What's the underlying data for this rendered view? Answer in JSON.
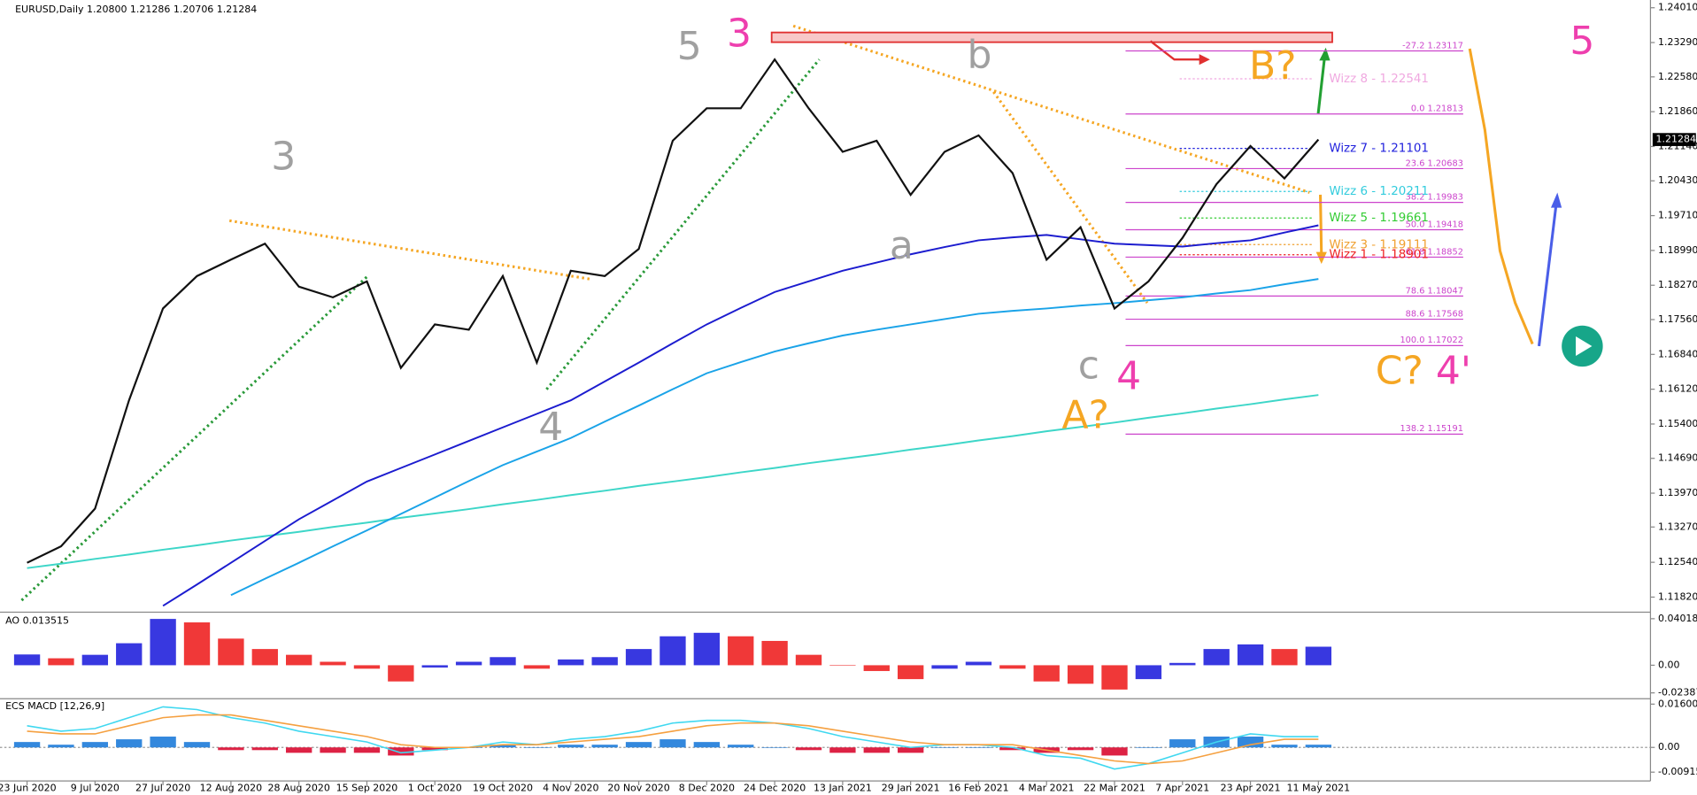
{
  "header": "EURUSD,Daily  1.20800 1.21286 1.20706 1.21284",
  "chart_data": [
    {
      "type": "line",
      "categories": [
        "23 Jun 2020",
        null,
        "9 Jul 2020",
        null,
        "27 Jul 2020",
        null,
        "12 Aug 2020",
        null,
        "28 Aug 2020",
        null,
        "15 Sep 2020",
        null,
        "1 Oct 2020",
        null,
        "19 Oct 2020",
        null,
        "4 Nov 2020",
        null,
        "20 Nov 2020",
        null,
        "8 Dec 2020",
        null,
        "24 Dec 2020",
        null,
        "13 Jan 2021",
        null,
        "29 Jan 2021",
        null,
        "16 Feb 2021",
        null,
        "4 Mar 2021",
        null,
        "22 Mar 2021",
        null,
        "7 Apr 2021",
        null,
        "23 Apr 2021",
        null,
        "11 May 2021"
      ],
      "series": [
        {
          "color": "#111111",
          "values": [
            1.1253,
            1.1287,
            1.1365,
            1.1589,
            1.1779,
            1.1846,
            1.188,
            1.1913,
            1.1824,
            1.1802,
            1.1835,
            1.1656,
            1.1746,
            1.1735,
            1.1846,
            1.1667,
            1.1857,
            1.1846,
            1.1902,
            1.2126,
            1.2193,
            1.2193,
            1.2294,
            1.2193,
            1.2103,
            1.2126,
            1.2014,
            1.2103,
            1.2137,
            1.2059,
            1.188,
            1.1947,
            1.1779,
            1.1835,
            1.1925,
            1.2036,
            1.2115,
            1.2048,
            1.21284
          ]
        },
        {
          "color": "#1c1ccf",
          "values": [
            null,
            null,
            null,
            null,
            1.1164,
            1.1208,
            1.1253,
            1.1298,
            1.1343,
            1.1382,
            1.1421,
            1.1449,
            1.1477,
            1.1505,
            1.1533,
            1.1561,
            1.1589,
            1.1628,
            1.1667,
            1.1707,
            1.1746,
            1.178,
            1.1813,
            1.1835,
            1.1857,
            1.1874,
            1.1891,
            1.1906,
            1.192,
            1.1926,
            1.1931,
            1.1922,
            1.1913,
            1.191,
            1.1907,
            1.1914,
            1.192,
            1.1936,
            1.1951
          ]
        },
        {
          "color": "#1aa3e8",
          "values": [
            null,
            null,
            null,
            null,
            null,
            null,
            1.1186,
            1.122,
            1.1253,
            1.1287,
            1.132,
            1.1354,
            1.1388,
            1.1422,
            1.1455,
            1.1483,
            1.1511,
            1.1545,
            1.1578,
            1.1612,
            1.1645,
            1.1668,
            1.169,
            1.1707,
            1.1723,
            1.1735,
            1.1746,
            1.1757,
            1.1768,
            1.1774,
            1.1779,
            1.1785,
            1.179,
            1.1796,
            1.1802,
            1.181,
            1.1817,
            1.1829,
            1.184
          ]
        },
        {
          "color": "#3dd6c8",
          "values": [
            1.1242,
            1.1251,
            1.1261,
            1.127,
            1.128,
            1.1289,
            1.1299,
            1.1308,
            1.1317,
            1.1327,
            1.1336,
            1.1346,
            1.1355,
            1.1364,
            1.1374,
            1.1383,
            1.1393,
            1.1402,
            1.1412,
            1.1421,
            1.143,
            1.144,
            1.1449,
            1.1459,
            1.1468,
            1.1477,
            1.1487,
            1.1496,
            1.1506,
            1.1515,
            1.1525,
            1.1534,
            1.1543,
            1.1553,
            1.1562,
            1.1572,
            1.1581,
            1.1591,
            1.16
          ]
        }
      ],
      "ylim": [
        1.1153,
        1.2417
      ],
      "yticks": [
        {
          "value": 1.1182,
          "label": "1.11820"
        },
        {
          "value": 1.1254,
          "label": "1.12540"
        },
        {
          "value": 1.1327,
          "label": "1.13270"
        },
        {
          "value": 1.1397,
          "label": "1.13970"
        },
        {
          "value": 1.1469,
          "label": "1.14690"
        },
        {
          "value": 1.154,
          "label": "1.15400"
        },
        {
          "value": 1.1612,
          "label": "1.16120"
        },
        {
          "value": 1.1684,
          "label": "1.16840"
        },
        {
          "value": 1.1756,
          "label": "1.17560"
        },
        {
          "value": 1.1827,
          "label": "1.18270"
        },
        {
          "value": 1.1899,
          "label": "1.18990"
        },
        {
          "value": 1.1971,
          "label": "1.19710"
        },
        {
          "value": 1.2043,
          "label": "1.20430"
        },
        {
          "value": 1.2114,
          "label": "1.21140"
        },
        {
          "value": 1.2186,
          "label": "1.21860"
        },
        {
          "value": 1.2258,
          "label": "1.22580"
        },
        {
          "value": 1.2329,
          "label": "1.23290"
        },
        {
          "value": 1.2401,
          "label": "1.24010"
        }
      ],
      "last_price": 1.21284,
      "fib_color": "#cc44cc",
      "fib_levels": [
        {
          "value": 1.23117,
          "label": "-27.2 1.23117"
        },
        {
          "value": 1.21813,
          "label": "0.0 1.21813"
        },
        {
          "value": 1.20683,
          "label": "23.6 1.20683"
        },
        {
          "value": 1.19983,
          "label": "38.2 1.19983"
        },
        {
          "value": 1.19418,
          "label": "50.0 1.19418"
        },
        {
          "value": 1.18852,
          "label": "61.8 1.18852"
        },
        {
          "value": 1.18047,
          "label": "78.6 1.18047"
        },
        {
          "value": 1.17568,
          "label": "88.6 1.17568"
        },
        {
          "value": 1.17022,
          "label": "100.0 1.17022"
        },
        {
          "value": 1.15191,
          "label": "138.2 1.15191"
        }
      ],
      "wizz_levels": [
        {
          "value": 1.22541,
          "label": "Wizz 8 - 1.22541",
          "color": "#f0a8e0"
        },
        {
          "value": 1.21101,
          "label": "Wizz 7 - 1.21101",
          "color": "#2222dd"
        },
        {
          "value": 1.20211,
          "label": "Wizz 6 - 1.20211",
          "color": "#33ccdd"
        },
        {
          "value": 1.19661,
          "label": "Wizz 5 - 1.19661",
          "color": "#33cc33"
        },
        {
          "value": 1.19111,
          "label": "Wizz 3 - 1.19111",
          "color": "#f0a030"
        },
        {
          "value": 1.18901,
          "label": "Wizz 1 - 1.18901",
          "color": "#ee2222"
        }
      ],
      "annotations": [
        {
          "text": "3",
          "color": "#a0a0a0"
        },
        {
          "text": "5",
          "color": "#a0a0a0"
        },
        {
          "text": "3",
          "color": "#ee3fae"
        },
        {
          "text": "4",
          "color": "#a0a0a0"
        },
        {
          "text": "b",
          "color": "#a0a0a0"
        },
        {
          "text": "a",
          "color": "#a0a0a0"
        },
        {
          "text": "c",
          "color": "#a0a0a0"
        },
        {
          "text": "4",
          "color": "#ee3fae"
        },
        {
          "text": "A?",
          "color": "#f5a623"
        },
        {
          "text": "B?",
          "color": "#f5a623"
        },
        {
          "text": "C?",
          "color": "#f5a623"
        },
        {
          "text": "4'",
          "color": "#ee3fae"
        },
        {
          "text": "5",
          "color": "#ee3fae"
        }
      ]
    },
    {
      "type": "bar",
      "title": "AO 0.013515",
      "values": [
        0.0093,
        0.006,
        0.009,
        0.019,
        0.04,
        0.037,
        0.023,
        0.014,
        0.009,
        0.003,
        -0.003,
        -0.014,
        -0.002,
        0.003,
        0.007,
        -0.003,
        0.005,
        0.007,
        0.014,
        0.025,
        0.028,
        0.025,
        0.021,
        0.009,
        0.0,
        -0.005,
        -0.012,
        -0.003,
        0.003,
        -0.003,
        -0.014,
        -0.016,
        -0.021,
        -0.012,
        0.002,
        0.014,
        0.018,
        0.014,
        0.016
      ],
      "up_color": "#2222dd",
      "down_color": "#ee2222",
      "ylim": [
        -0.028,
        0.0458
      ],
      "yticks": [
        -0.023872,
        {
          "value": 0,
          "label": "0.00"
        },
        0.04018
      ]
    },
    {
      "type": "macd",
      "title": "ECS MACD [12,26,9]",
      "series": [
        {
          "color": "#40d8f0",
          "values": [
            0.008,
            0.006,
            0.007,
            0.011,
            0.015,
            0.014,
            0.011,
            0.009,
            0.006,
            0.004,
            0.002,
            -0.002,
            -0.001,
            0.0,
            0.002,
            0.001,
            0.003,
            0.004,
            0.006,
            0.009,
            0.01,
            0.01,
            0.009,
            0.007,
            0.004,
            0.002,
            0.0,
            0.001,
            0.001,
            0.0,
            -0.003,
            -0.004,
            -0.008,
            -0.006,
            -0.002,
            0.002,
            0.005,
            0.004,
            0.004
          ]
        },
        {
          "color": "#f5a040",
          "values": [
            0.006,
            0.005,
            0.005,
            0.008,
            0.011,
            0.012,
            0.012,
            0.01,
            0.008,
            0.006,
            0.004,
            0.001,
            0.0,
            0.0,
            0.001,
            0.001,
            0.002,
            0.003,
            0.004,
            0.006,
            0.008,
            0.009,
            0.009,
            0.008,
            0.006,
            0.004,
            0.002,
            0.001,
            0.001,
            0.001,
            -0.001,
            -0.003,
            -0.005,
            -0.006,
            -0.005,
            -0.002,
            0.001,
            0.003,
            0.003
          ]
        }
      ],
      "histogram": [
        0.002,
        0.001,
        0.002,
        0.003,
        0.004,
        0.002,
        -0.001,
        -0.001,
        -0.002,
        -0.002,
        -0.002,
        -0.003,
        -0.001,
        0,
        0.001,
        0,
        0.001,
        0.001,
        0.002,
        0.003,
        0.002,
        0.001,
        0,
        -0.001,
        -0.002,
        -0.002,
        -0.002,
        0,
        0,
        -0.001,
        -0.002,
        -0.001,
        -0.003,
        0,
        0.003,
        0.004,
        0.004,
        0.001,
        0.001
      ],
      "up_color": "#3388dd",
      "down_color": "#dd2244",
      "ylim": [
        -0.012,
        0.0176
      ],
      "yticks": [
        -0.009151,
        {
          "value": 0,
          "label": "0.00"
        },
        0.0160063
      ]
    }
  ]
}
